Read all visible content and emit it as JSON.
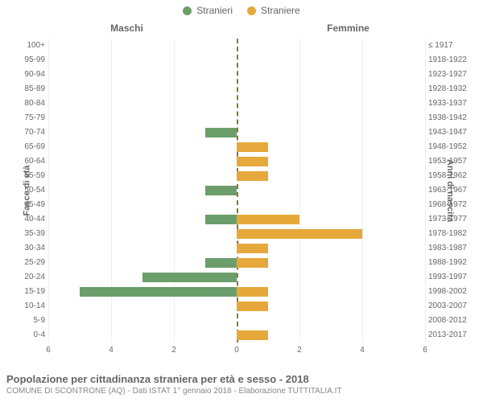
{
  "legend": [
    {
      "label": "Stranieri",
      "color": "#6b9e6b"
    },
    {
      "label": "Straniere",
      "color": "#e6a83a"
    }
  ],
  "headers": {
    "left": "Maschi",
    "right": "Femmine"
  },
  "left_axis_title": "Fasce di età",
  "right_axis_title": "Anni di nascita",
  "age_bands": [
    "0-4",
    "5-9",
    "10-14",
    "15-19",
    "20-24",
    "25-29",
    "30-34",
    "35-39",
    "40-44",
    "45-49",
    "50-54",
    "55-59",
    "60-64",
    "65-69",
    "70-74",
    "75-79",
    "80-84",
    "85-89",
    "90-94",
    "95-99",
    "100+"
  ],
  "birth_years": [
    "2013-2017",
    "2008-2012",
    "2003-2007",
    "1998-2002",
    "1993-1997",
    "1988-1992",
    "1983-1987",
    "1978-1982",
    "1973-1977",
    "1968-1972",
    "1963-1967",
    "1958-1962",
    "1953-1957",
    "1948-1952",
    "1943-1947",
    "1938-1942",
    "1933-1937",
    "1928-1932",
    "1923-1927",
    "1918-1922",
    "≤ 1917"
  ],
  "male_values": [
    0,
    0,
    0,
    5,
    3,
    1,
    0,
    0,
    1,
    0,
    1,
    0,
    0,
    0,
    1,
    0,
    0,
    0,
    0,
    0,
    0
  ],
  "female_values": [
    1,
    0,
    1,
    1,
    0,
    1,
    1,
    4,
    2,
    0,
    0,
    1,
    1,
    1,
    0,
    0,
    0,
    0,
    0,
    0,
    0
  ],
  "male_color": "#6b9e6b",
  "female_color": "#e6a83a",
  "x_max": 6,
  "x_ticks": [
    0,
    2,
    4,
    6
  ],
  "grid_color": "#eeeeee",
  "center_color": "#8a7a2a",
  "bg": "#ffffff",
  "title": "Popolazione per cittadinanza straniera per età e sesso - 2018",
  "subtitle": "COMUNE DI SCONTRONE (AQ) - Dati ISTAT 1° gennaio 2018 - Elaborazione TUTTITALIA.IT"
}
